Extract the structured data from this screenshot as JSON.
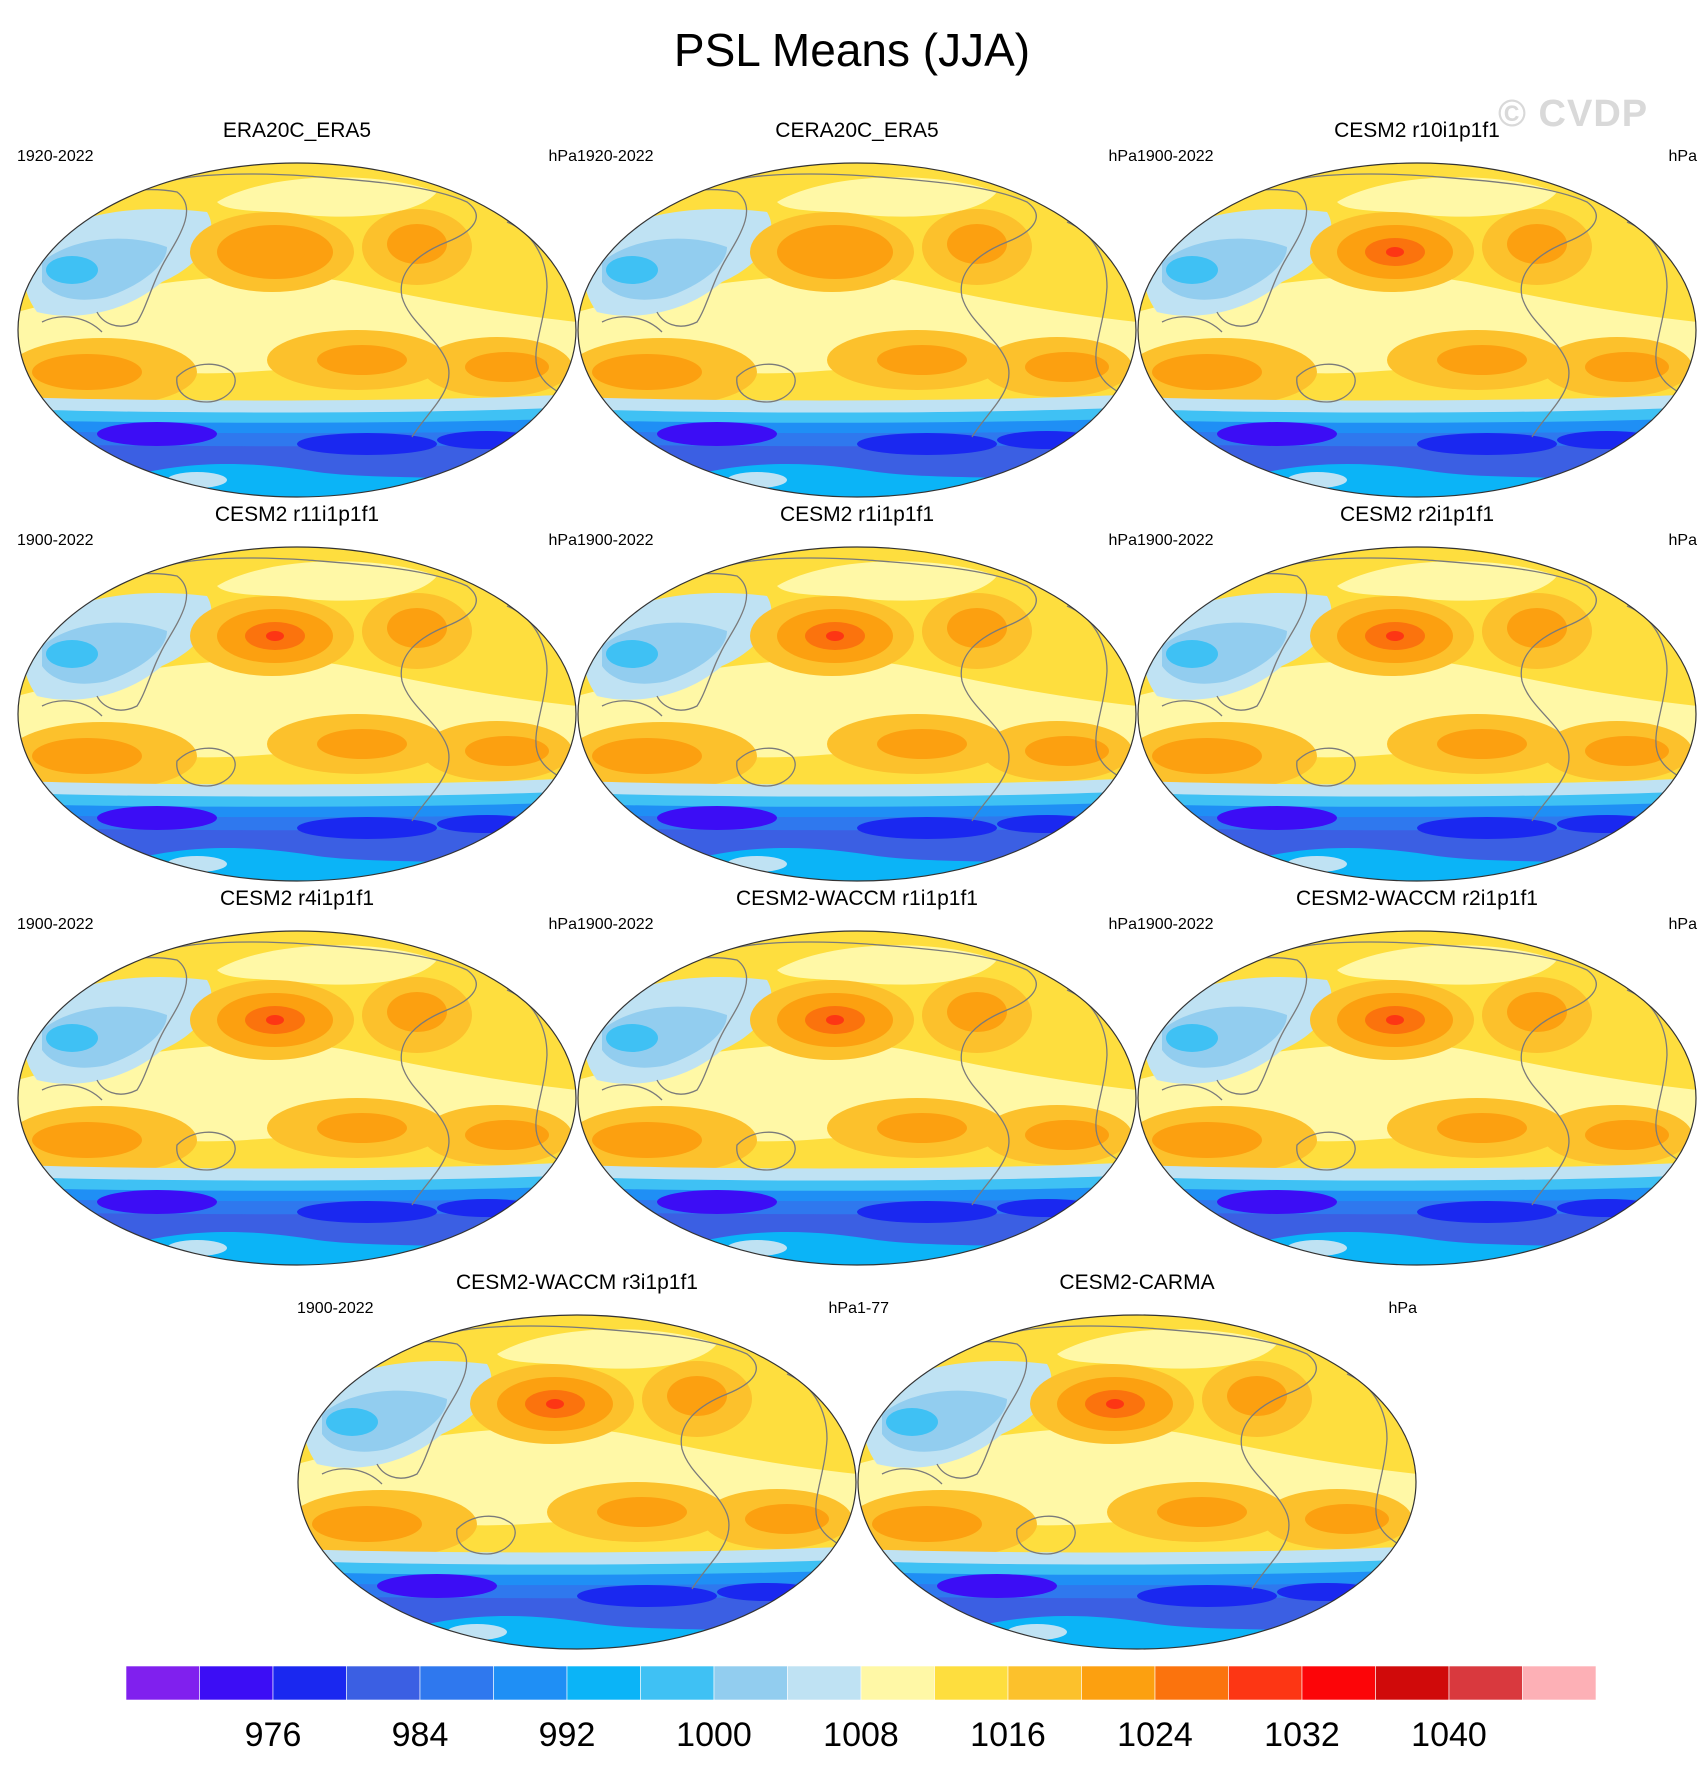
{
  "title": "PSL Means (JJA)",
  "watermark": "© CVDP",
  "units": "hPa",
  "colors": {
    "outline": "#333333",
    "coast": "#7a7a7a"
  },
  "panels": [
    {
      "name": "ERA20C_ERA5",
      "years": "1920-2022",
      "units": "hPa",
      "north_high_level": 11,
      "south_low_level": 1
    },
    {
      "name": "CERA20C_ERA5",
      "years": "1920-2022",
      "units": "hPa",
      "north_high_level": 11,
      "south_low_level": 1
    },
    {
      "name": "CESM2 r10i1p1f1",
      "years": "1900-2022",
      "units": "hPa",
      "north_high_level": 12,
      "south_low_level": 1
    },
    {
      "name": "CESM2 r11i1p1f1",
      "years": "1900-2022",
      "units": "hPa",
      "north_high_level": 12,
      "south_low_level": 1
    },
    {
      "name": "CESM2 r1i1p1f1",
      "years": "1900-2022",
      "units": "hPa",
      "north_high_level": 12,
      "south_low_level": 1
    },
    {
      "name": "CESM2 r2i1p1f1",
      "years": "1900-2022",
      "units": "hPa",
      "north_high_level": 12,
      "south_low_level": 1
    },
    {
      "name": "CESM2 r4i1p1f1",
      "years": "1900-2022",
      "units": "hPa",
      "north_high_level": 12,
      "south_low_level": 1
    },
    {
      "name": "CESM2-WACCM r1i1p1f1",
      "years": "1900-2022",
      "units": "hPa",
      "north_high_level": 12,
      "south_low_level": 1
    },
    {
      "name": "CESM2-WACCM r2i1p1f1",
      "years": "1900-2022",
      "units": "hPa",
      "north_high_level": 12,
      "south_low_level": 1
    },
    {
      "name": "CESM2-WACCM r3i1p1f1",
      "years": "1900-2022",
      "units": "hPa",
      "north_high_level": 12,
      "south_low_level": 1
    },
    {
      "name": "CESM2-CARMA",
      "years": "1-77",
      "units": "hPa",
      "north_high_level": 12,
      "south_low_level": 1
    }
  ],
  "chart_data": {
    "type": "heatmap",
    "title": "PSL Means (JJA)",
    "projection": "Robinson (Pacific-centered)",
    "colorbar": {
      "units": "hPa",
      "orientation": "horizontal",
      "placement": "bottom",
      "levels": [
        972,
        976,
        980,
        984,
        988,
        992,
        996,
        1000,
        1004,
        1008,
        1012,
        1016,
        1020,
        1024,
        1028,
        1032,
        1036,
        1040,
        1044
      ],
      "tick_labels": [
        "976",
        "984",
        "992",
        "1000",
        "1008",
        "1016",
        "1024",
        "1032",
        "1040"
      ],
      "colors": [
        "#8020ee",
        "#3c0df5",
        "#1a28f0",
        "#3b5fe3",
        "#2f78ee",
        "#1f8ff5",
        "#0bb4f7",
        "#3fc1f4",
        "#92cdef",
        "#bfe2f3",
        "#fff8a6",
        "#fede3e",
        "#fcc12c",
        "#fca010",
        "#fb730d",
        "#fd3614",
        "#fc0508",
        "#d00a0a",
        "#d9393e",
        "#fdb0b6"
      ]
    }
  }
}
